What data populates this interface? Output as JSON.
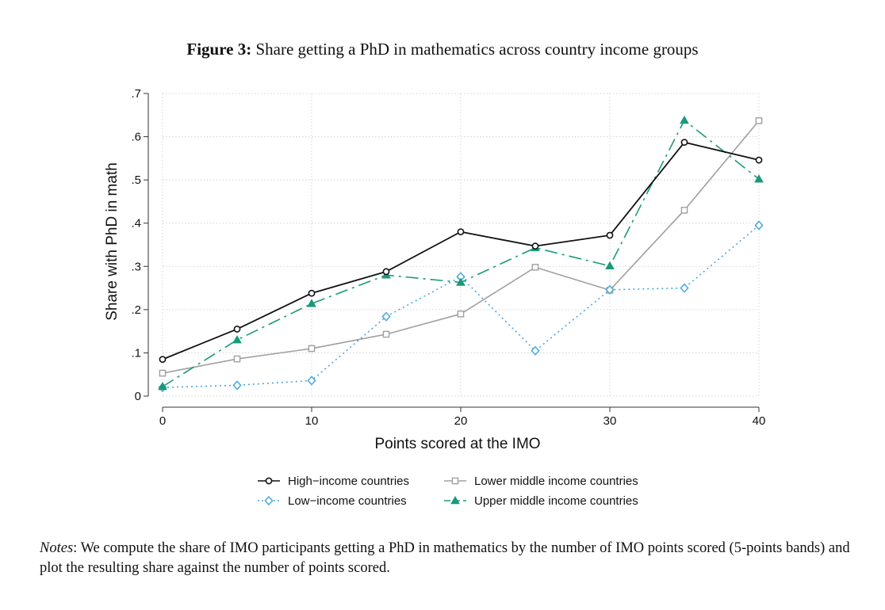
{
  "figure": {
    "label": "Figure 3:",
    "title": "Share getting a PhD in mathematics across country income groups"
  },
  "notes": {
    "label": "Notes",
    "text": ": We compute the share of IMO participants getting a PhD in mathematics by the number of IMO points scored (5-points bands) and plot the resulting share against the number of points scored."
  },
  "chart_data": {
    "type": "line",
    "title": "Share getting a PhD in mathematics across country income groups",
    "xlabel": "Points scored at the IMO",
    "ylabel": "Share with PhD in math",
    "xlim": [
      0,
      40
    ],
    "ylim": [
      0,
      0.7
    ],
    "x_ticks": [
      0,
      10,
      20,
      30,
      40
    ],
    "x_tick_labels": [
      "0",
      "10",
      "20",
      "30",
      "40"
    ],
    "y_ticks": [
      0,
      0.1,
      0.2,
      0.3,
      0.4,
      0.5,
      0.6,
      0.7
    ],
    "y_tick_labels": [
      "0",
      ".1",
      ".2",
      ".3",
      ".4",
      ".5",
      ".6",
      ".7"
    ],
    "grid": true,
    "legend_position": "bottom",
    "x": [
      0,
      5,
      10,
      15,
      20,
      25,
      30,
      35,
      40
    ],
    "series": [
      {
        "name": "High−income countries",
        "color": "#111111",
        "marker": "circle",
        "dash": "solid",
        "values": [
          0.085,
          0.155,
          0.238,
          0.288,
          0.38,
          0.347,
          0.372,
          0.587,
          0.546
        ]
      },
      {
        "name": "Low−income countries",
        "color": "#4aa8dc",
        "marker": "diamond",
        "dash": "dot",
        "values": [
          0.02,
          0.025,
          0.036,
          0.184,
          0.276,
          0.105,
          0.246,
          0.25,
          0.395
        ]
      },
      {
        "name": "Lower middle income countries",
        "color": "#a0a0a0",
        "marker": "square",
        "dash": "solid",
        "values": [
          0.053,
          0.086,
          0.11,
          0.143,
          0.19,
          0.298,
          0.245,
          0.43,
          0.637
        ]
      },
      {
        "name": "Upper middle income countries",
        "color": "#1a9a7a",
        "marker": "triangle",
        "dash": "longdash",
        "values": [
          0.022,
          0.13,
          0.214,
          0.28,
          0.263,
          0.343,
          0.301,
          0.638,
          0.502
        ]
      }
    ]
  }
}
